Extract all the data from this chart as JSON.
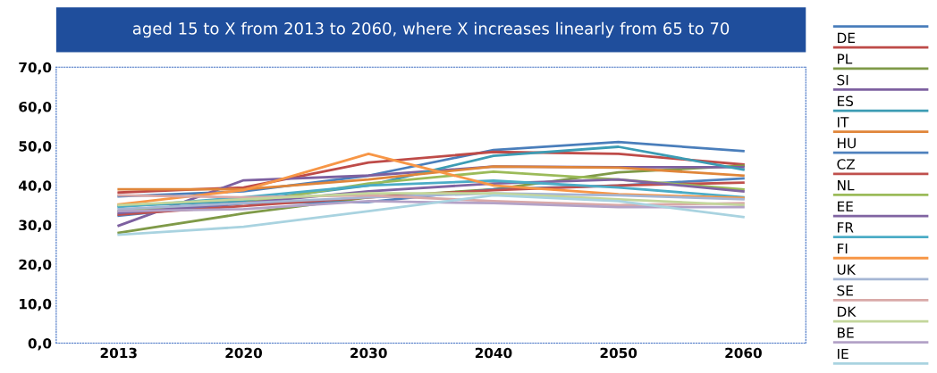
{
  "chart_data": {
    "type": "line",
    "title": "aged 15 to X from 2013 to 2060, where X increases linearly from 65 to 70",
    "categories": [
      "2013",
      "2020",
      "2030",
      "2040",
      "2050",
      "2060"
    ],
    "ylim": [
      0,
      70
    ],
    "yticks": [
      {
        "value": 0,
        "label": "0,0"
      },
      {
        "value": 10,
        "label": "10,0"
      },
      {
        "value": 20,
        "label": "20,0"
      },
      {
        "value": 30,
        "label": "30,0"
      },
      {
        "value": 40,
        "label": "40,0"
      },
      {
        "value": 50,
        "label": "50,0"
      },
      {
        "value": 60,
        "label": "60,0"
      },
      {
        "value": 70,
        "label": "70,0"
      }
    ],
    "grid": false,
    "legend": "right",
    "marker": "none",
    "line_style": "solid",
    "series": [
      {
        "color": "#4a7ebb",
        "values": [
          37.2,
          38.5,
          42.5,
          49.0,
          51.0,
          48.7
        ]
      },
      {
        "name": "DE",
        "color": "#be4b48",
        "values": [
          38.2,
          39.5,
          45.8,
          48.5,
          48.0,
          45.3
        ]
      },
      {
        "name": "PL",
        "color": "#7f9a48",
        "values": [
          28.0,
          32.9,
          37.0,
          39.0,
          43.3,
          45.0
        ]
      },
      {
        "name": "SI",
        "color": "#7d60a0",
        "values": [
          29.8,
          41.3,
          42.5,
          44.8,
          44.6,
          44.6
        ]
      },
      {
        "name": "ES",
        "color": "#3c9cb4",
        "values": [
          34.8,
          36.0,
          40.0,
          47.5,
          49.8,
          44.0
        ]
      },
      {
        "name": "IT",
        "color": "#e0863a",
        "values": [
          39.0,
          39.0,
          41.5,
          44.8,
          44.5,
          42.5
        ]
      },
      {
        "name": "HU",
        "color": "#4f81bd",
        "values": [
          32.3,
          35.5,
          35.8,
          39.0,
          40.0,
          41.8
        ]
      },
      {
        "name": "CZ",
        "color": "#c0504d",
        "values": [
          32.6,
          34.8,
          37.0,
          38.8,
          40.0,
          40.7
        ]
      },
      {
        "name": "NL",
        "color": "#9bbb59",
        "values": [
          33.5,
          35.5,
          40.5,
          43.5,
          41.5,
          39.0
        ]
      },
      {
        "name": "EE",
        "color": "#8064a2",
        "values": [
          33.0,
          35.5,
          38.5,
          40.5,
          41.5,
          38.5
        ]
      },
      {
        "name": "FR",
        "color": "#4bacc6",
        "values": [
          34.5,
          37.0,
          40.0,
          41.2,
          39.5,
          37.0
        ]
      },
      {
        "name": "FI",
        "color": "#f79646",
        "values": [
          35.2,
          38.8,
          48.0,
          40.0,
          37.8,
          36.8
        ]
      },
      {
        "name": "UK",
        "color": "#a5b6d4",
        "values": [
          34.0,
          35.5,
          37.0,
          38.0,
          37.5,
          36.5
        ]
      },
      {
        "name": "SE",
        "color": "#d9a9a8",
        "values": [
          37.5,
          37.0,
          37.5,
          36.0,
          35.0,
          35.5
        ]
      },
      {
        "name": "DK",
        "color": "#c3d69b",
        "values": [
          35.0,
          36.5,
          38.0,
          38.0,
          36.5,
          35.0
        ]
      },
      {
        "name": "BE",
        "color": "#b3a2c7",
        "values": [
          33.5,
          34.0,
          36.0,
          35.5,
          34.5,
          34.5
        ]
      },
      {
        "name": "IE",
        "color": "#a9d3e0",
        "values": [
          27.5,
          29.5,
          33.5,
          37.5,
          36.0,
          32.0
        ]
      }
    ]
  }
}
